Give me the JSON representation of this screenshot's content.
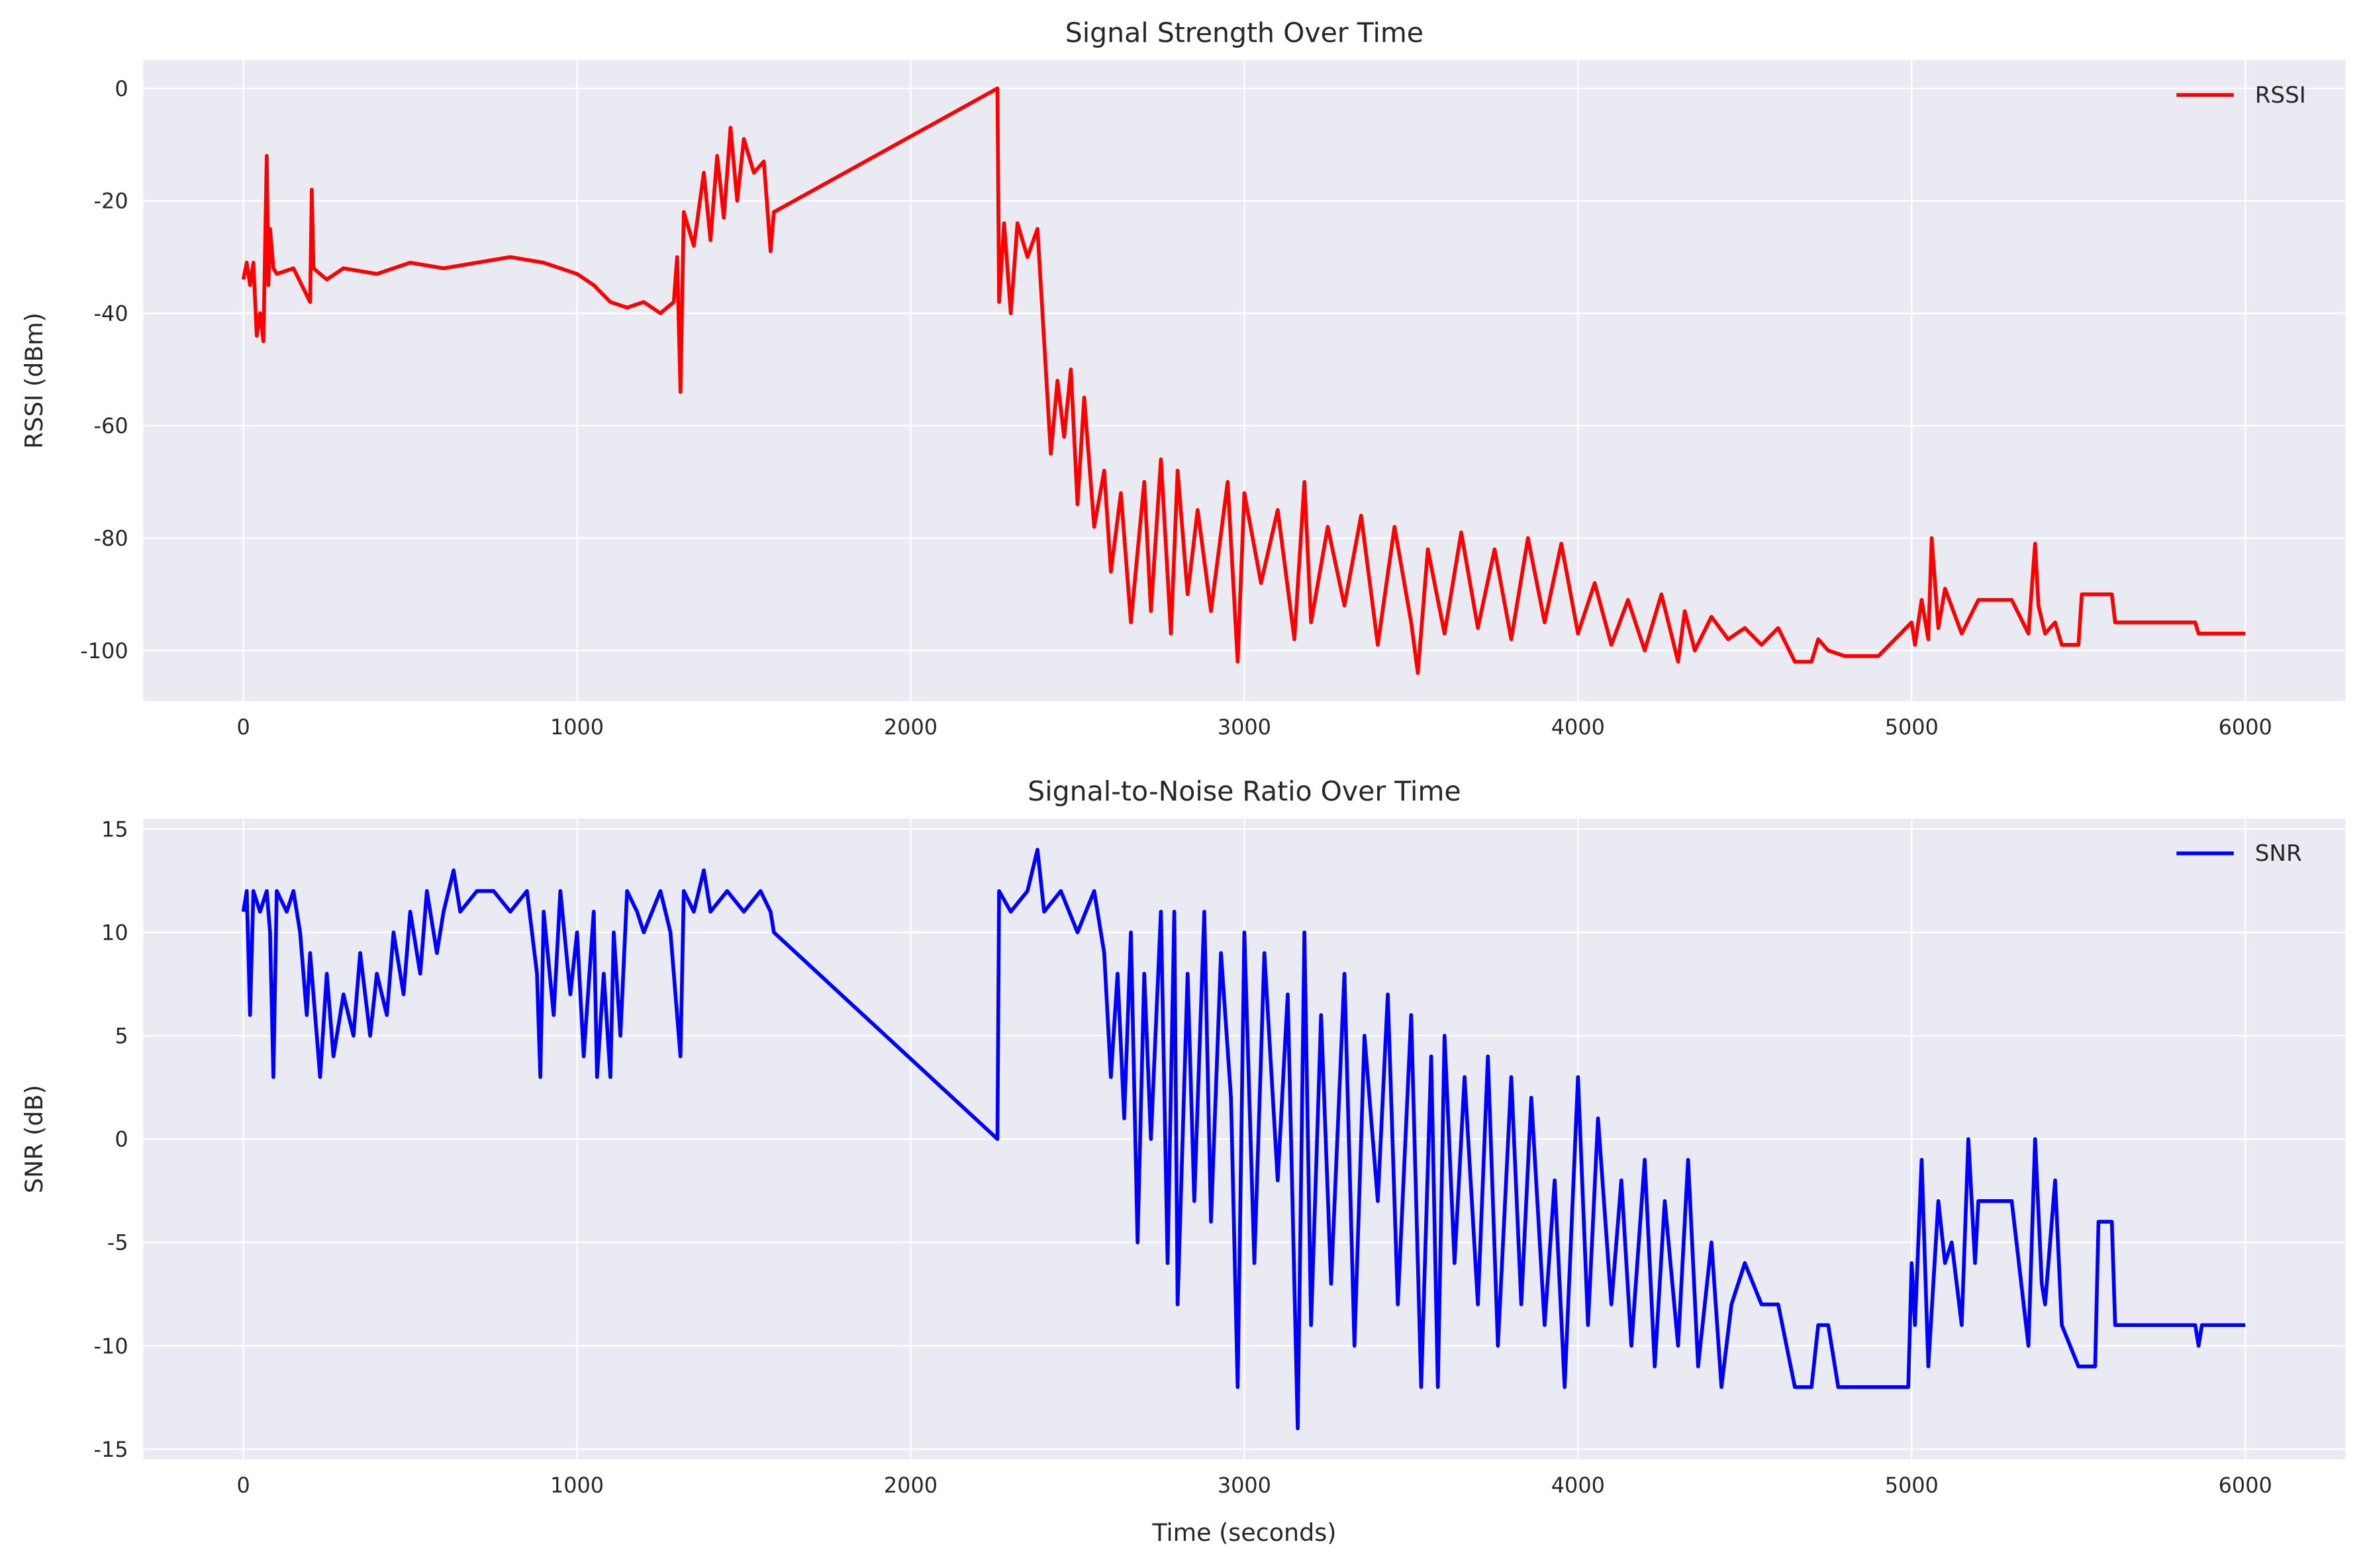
{
  "chart_data": [
    {
      "type": "line",
      "title": "Signal Strength Over Time",
      "y_label": "RSSI (dBm)",
      "x": [
        0,
        10,
        20,
        30,
        40,
        50,
        60,
        70,
        75,
        80,
        90,
        100,
        150,
        200,
        205,
        210,
        250,
        300,
        400,
        500,
        600,
        700,
        800,
        900,
        1000,
        1050,
        1100,
        1150,
        1200,
        1250,
        1290,
        1300,
        1310,
        1320,
        1350,
        1380,
        1400,
        1420,
        1440,
        1460,
        1480,
        1500,
        1530,
        1560,
        1580,
        1590,
        2260,
        2265,
        2280,
        2300,
        2320,
        2350,
        2380,
        2400,
        2420,
        2440,
        2460,
        2480,
        2500,
        2520,
        2550,
        2580,
        2600,
        2630,
        2660,
        2700,
        2720,
        2750,
        2780,
        2800,
        2830,
        2860,
        2900,
        2950,
        2980,
        3000,
        3050,
        3100,
        3150,
        3180,
        3200,
        3250,
        3300,
        3350,
        3400,
        3450,
        3500,
        3520,
        3550,
        3600,
        3650,
        3700,
        3750,
        3800,
        3850,
        3900,
        3950,
        4000,
        4050,
        4100,
        4150,
        4200,
        4250,
        4300,
        4320,
        4350,
        4400,
        4450,
        4500,
        4550,
        4600,
        4650,
        4700,
        4720,
        4750,
        4800,
        4900,
        5000,
        5010,
        5030,
        5050,
        5060,
        5080,
        5100,
        5150,
        5200,
        5300,
        5350,
        5370,
        5380,
        5400,
        5430,
        5450,
        5500,
        5510,
        5600,
        5610,
        5850,
        5860,
        6000
      ],
      "series": [
        {
          "name": "RSSI",
          "color": "#ff0000",
          "values": [
            -34,
            -31,
            -35,
            -31,
            -44,
            -40,
            -45,
            -12,
            -35,
            -25,
            -32,
            -33,
            -32,
            -38,
            -18,
            -32,
            -34,
            -32,
            -33,
            -31,
            -32,
            -31,
            -30,
            -31,
            -33,
            -35,
            -38,
            -39,
            -38,
            -40,
            -38,
            -30,
            -54,
            -22,
            -28,
            -15,
            -27,
            -12,
            -23,
            -7,
            -20,
            -9,
            -15,
            -13,
            -29,
            -22,
            0,
            -38,
            -24,
            -40,
            -24,
            -30,
            -25,
            -45,
            -65,
            -52,
            -62,
            -50,
            -74,
            -55,
            -78,
            -68,
            -86,
            -72,
            -95,
            -70,
            -93,
            -66,
            -97,
            -68,
            -90,
            -75,
            -93,
            -70,
            -102,
            -72,
            -88,
            -75,
            -98,
            -70,
            -95,
            -78,
            -92,
            -76,
            -99,
            -78,
            -95,
            -104,
            -82,
            -97,
            -79,
            -96,
            -82,
            -98,
            -80,
            -95,
            -81,
            -97,
            -88,
            -99,
            -91,
            -100,
            -90,
            -102,
            -93,
            -100,
            -94,
            -98,
            -96,
            -99,
            -96,
            -102,
            -102,
            -98,
            -100,
            -101,
            -101,
            -95,
            -99,
            -91,
            -98,
            -80,
            -96,
            -89,
            -97,
            -91,
            -91,
            -97,
            -81,
            -92,
            -97,
            -95,
            -99,
            -99,
            -90,
            -90,
            -95,
            -95,
            -97,
            -97
          ]
        }
      ],
      "xlim": [
        -300,
        6300
      ],
      "ylim": [
        -109,
        5
      ],
      "xticks": [
        0,
        1000,
        2000,
        3000,
        4000,
        5000,
        6000
      ],
      "yticks": [
        -100,
        -80,
        -60,
        -40,
        -20,
        0
      ],
      "grid": true,
      "legend": "upper right"
    },
    {
      "type": "line",
      "title": "Signal-to-Noise Ratio Over Time",
      "x_label": "Time (seconds)",
      "y_label": "SNR (dB)",
      "x": [
        0,
        10,
        20,
        30,
        50,
        70,
        80,
        90,
        100,
        130,
        150,
        170,
        190,
        200,
        220,
        230,
        250,
        270,
        300,
        330,
        350,
        380,
        400,
        430,
        450,
        480,
        500,
        530,
        550,
        580,
        600,
        630,
        650,
        700,
        750,
        800,
        850,
        880,
        890,
        900,
        930,
        950,
        980,
        1000,
        1020,
        1050,
        1060,
        1080,
        1100,
        1110,
        1130,
        1150,
        1180,
        1200,
        1250,
        1280,
        1310,
        1320,
        1350,
        1380,
        1400,
        1450,
        1500,
        1550,
        1580,
        1590,
        2260,
        2265,
        2300,
        2350,
        2380,
        2400,
        2450,
        2500,
        2550,
        2580,
        2600,
        2620,
        2640,
        2660,
        2680,
        2700,
        2720,
        2750,
        2770,
        2790,
        2800,
        2830,
        2850,
        2880,
        2900,
        2930,
        2960,
        2980,
        3000,
        3030,
        3060,
        3100,
        3130,
        3160,
        3180,
        3200,
        3230,
        3260,
        3300,
        3330,
        3360,
        3400,
        3430,
        3460,
        3500,
        3530,
        3560,
        3580,
        3600,
        3630,
        3660,
        3700,
        3730,
        3760,
        3800,
        3830,
        3860,
        3900,
        3930,
        3960,
        4000,
        4030,
        4060,
        4100,
        4130,
        4160,
        4200,
        4230,
        4260,
        4300,
        4330,
        4360,
        4400,
        4430,
        4460,
        4500,
        4550,
        4600,
        4650,
        4700,
        4720,
        4750,
        4780,
        4900,
        4990,
        5000,
        5010,
        5030,
        5050,
        5080,
        5100,
        5120,
        5150,
        5170,
        5190,
        5200,
        5300,
        5350,
        5370,
        5390,
        5400,
        5430,
        5450,
        5500,
        5550,
        5560,
        5600,
        5610,
        5850,
        5860,
        5870,
        6000
      ],
      "series": [
        {
          "name": "SNR",
          "color": "#0000ff",
          "values": [
            11,
            12,
            6,
            12,
            11,
            12,
            10,
            3,
            12,
            11,
            12,
            10,
            6,
            9,
            5,
            3,
            8,
            4,
            7,
            5,
            9,
            5,
            8,
            6,
            10,
            7,
            11,
            8,
            12,
            9,
            11,
            13,
            11,
            12,
            12,
            11,
            12,
            8,
            3,
            11,
            6,
            12,
            7,
            10,
            4,
            11,
            3,
            8,
            3,
            10,
            5,
            12,
            11,
            10,
            12,
            10,
            4,
            12,
            11,
            13,
            11,
            12,
            11,
            12,
            11,
            10,
            0,
            12,
            11,
            12,
            14,
            11,
            12,
            10,
            12,
            9,
            3,
            8,
            1,
            10,
            -5,
            8,
            0,
            11,
            -6,
            11,
            -8,
            8,
            -3,
            11,
            -4,
            9,
            2,
            -12,
            10,
            -6,
            9,
            -2,
            7,
            -14,
            10,
            -9,
            6,
            -7,
            8,
            -10,
            5,
            -3,
            7,
            -8,
            6,
            -12,
            4,
            -12,
            5,
            -6,
            3,
            -8,
            4,
            -10,
            3,
            -8,
            2,
            -9,
            -2,
            -12,
            3,
            -9,
            1,
            -8,
            -2,
            -10,
            -1,
            -11,
            -3,
            -10,
            -1,
            -11,
            -5,
            -12,
            -8,
            -6,
            -8,
            -8,
            -12,
            -12,
            -9,
            -9,
            -12,
            -12,
            -12,
            -6,
            -9,
            -1,
            -11,
            -3,
            -6,
            -5,
            -9,
            0,
            -6,
            -3,
            -3,
            -10,
            0,
            -7,
            -8,
            -2,
            -9,
            -11,
            -11,
            -4,
            -4,
            -9,
            -9,
            -10,
            -9,
            -9
          ]
        }
      ],
      "xlim": [
        -300,
        6300
      ],
      "ylim": [
        -15.5,
        15.5
      ],
      "xticks": [
        0,
        1000,
        2000,
        3000,
        4000,
        5000,
        6000
      ],
      "yticks": [
        -15,
        -10,
        -5,
        0,
        5,
        10,
        15
      ],
      "grid": true,
      "legend": "upper right"
    }
  ]
}
